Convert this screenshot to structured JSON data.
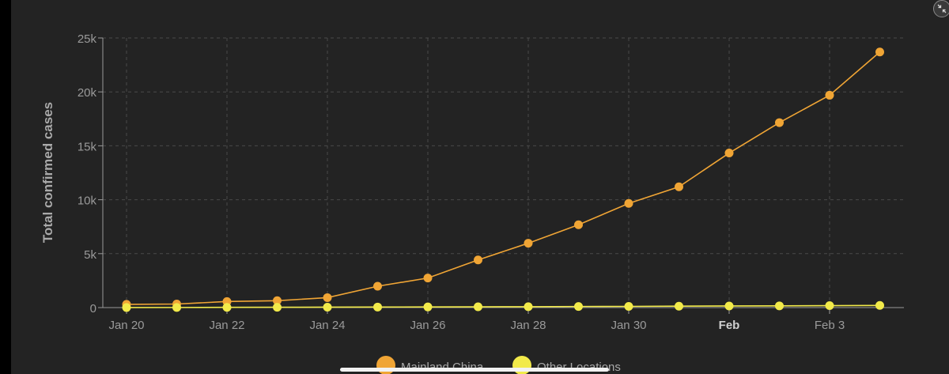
{
  "chart_data": {
    "type": "line",
    "ylabel": "Total confirmed cases",
    "ylim": [
      0,
      25000
    ],
    "yticks": [
      0,
      5000,
      10000,
      15000,
      20000,
      25000
    ],
    "ytick_labels": [
      "0",
      "5k",
      "10k",
      "15k",
      "20k",
      "25k"
    ],
    "xtick_labels": [
      "Jan 20",
      "Jan 22",
      "Jan 24",
      "Jan 26",
      "Jan 28",
      "Jan 30",
      "Feb",
      "Feb 3"
    ],
    "xtick_bold": "Feb",
    "x": [
      "Jan 20",
      "Jan 21",
      "Jan 22",
      "Jan 23",
      "Jan 24",
      "Jan 25",
      "Jan 26",
      "Jan 27",
      "Jan 28",
      "Jan 29",
      "Jan 30",
      "Jan 31",
      "Feb 1",
      "Feb 2",
      "Feb 3",
      "Feb 4"
    ],
    "grid": true,
    "legend_position": "bottom",
    "series": [
      {
        "name": "Mainland China",
        "color": "#f0a535",
        "values": [
          300,
          330,
          560,
          640,
          920,
          1980,
          2740,
          4420,
          5970,
          7680,
          9660,
          11200,
          14330,
          17150,
          19690,
          23700
        ]
      },
      {
        "name": "Other Locations",
        "color": "#f2ea4a",
        "values": [
          5,
          10,
          20,
          30,
          40,
          50,
          60,
          70,
          80,
          100,
          110,
          130,
          150,
          160,
          180,
          200
        ]
      }
    ]
  }
}
